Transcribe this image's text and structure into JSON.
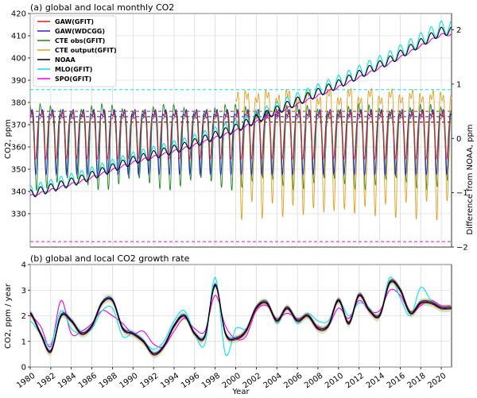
{
  "chart_data": [
    {
      "type": "line",
      "title": "(a) global and local monthly CO2",
      "ylabel": "CO2, ppm",
      "y2label": "Difference from NOAA, ppm",
      "xlim": [
        1980,
        2021
      ],
      "ylim": [
        315,
        420
      ],
      "y2lim": [
        -2,
        2.3
      ],
      "grid": true,
      "legend_position": "top-left",
      "y_ticks": [
        "330",
        "340",
        "350",
        "360",
        "370",
        "380",
        "390",
        "400",
        "410",
        "420"
      ],
      "y2_ticks": [
        "−2",
        "−1",
        "0",
        "1",
        "2"
      ],
      "series": [
        {
          "name": "GAW(GFIT)",
          "color": "#e41a1c"
        },
        {
          "name": "GAW(WDCGG)",
          "color": "#1f1fd0"
        },
        {
          "name": "CTE obs(GFIT)",
          "color": "#1a8a1a"
        },
        {
          "name": "CTE output(GFIT)",
          "color": "#e0a020"
        },
        {
          "name": "NOAA",
          "color": "#000000"
        },
        {
          "name": "MLO(GFIT)",
          "color": "#00e5ee"
        },
        {
          "name": "SPO(GFIT)",
          "color": "#ee00ee"
        }
      ],
      "co2_annual_means": {
        "x": [
          1980,
          1985,
          1990,
          1995,
          2000,
          2005,
          2010,
          2015,
          2020
        ],
        "NOAA": [
          338.9,
          345.5,
          353.9,
          360.2,
          368.4,
          378.6,
          388.3,
          399.0,
          412.0
        ],
        "MLO": [
          339.8,
          346.4,
          354.8,
          361.1,
          369.3,
          379.5,
          389.3,
          400.3,
          413.7
        ],
        "SPO": [
          337.9,
          344.6,
          353.0,
          359.3,
          367.3,
          377.3,
          386.9,
          397.7,
          410.5
        ]
      },
      "difference_offsets": {
        "MLO(GFIT)": 0.9,
        "SPO(GFIT)": -1.9,
        "GAW(GFIT)": 0.5,
        "GAW(WDCGG)": 0.4,
        "NOAA": 0.3
      }
    },
    {
      "type": "line",
      "title": "(b) global and local CO2 growth rate",
      "ylabel": "CO2, ppm / year",
      "xlabel": "Year",
      "xlim": [
        1980,
        2021
      ],
      "ylim": [
        0,
        4
      ],
      "grid": true,
      "x_ticks": [
        "1980",
        "1982",
        "1984",
        "1986",
        "1988",
        "1990",
        "1992",
        "1994",
        "1996",
        "1998",
        "2000",
        "2002",
        "2004",
        "2006",
        "2008",
        "2010",
        "2012",
        "2014",
        "2016",
        "2018",
        "2020"
      ],
      "y_ticks": [
        "0",
        "1",
        "2",
        "3",
        "4"
      ],
      "growth_rate": {
        "x": [
          1980,
          1981,
          1982,
          1983,
          1984,
          1985,
          1986,
          1987,
          1988,
          1989,
          1990,
          1991,
          1992,
          1993,
          1994,
          1995,
          1996,
          1997,
          1998,
          1999,
          2000,
          2001,
          2002,
          2003,
          2004,
          2005,
          2006,
          2007,
          2008,
          2009,
          2010,
          2011,
          2012,
          2013,
          2014,
          2015,
          2016,
          2017,
          2018,
          2019,
          2020,
          2021
        ],
        "NOAA": [
          2.1,
          1.3,
          0.6,
          2.0,
          1.8,
          1.3,
          1.6,
          2.5,
          2.6,
          1.5,
          1.3,
          1.0,
          0.5,
          0.8,
          1.6,
          2.0,
          1.3,
          1.2,
          3.2,
          1.3,
          1.1,
          1.4,
          2.3,
          2.5,
          1.8,
          2.3,
          1.8,
          2.0,
          1.5,
          1.6,
          2.6,
          1.7,
          2.8,
          2.2,
          2.0,
          3.3,
          3.0,
          2.1,
          2.5,
          2.5,
          2.3,
          2.3
        ],
        "MLO": [
          1.8,
          1.3,
          0.9,
          2.2,
          1.5,
          1.3,
          1.5,
          2.2,
          2.3,
          1.2,
          1.3,
          1.0,
          0.7,
          1.0,
          1.8,
          2.2,
          1.3,
          0.9,
          3.5,
          0.5,
          1.5,
          1.5,
          2.3,
          2.6,
          1.7,
          2.3,
          1.7,
          2.1,
          1.8,
          1.8,
          2.6,
          2.0,
          2.5,
          2.3,
          2.0,
          3.5,
          2.7,
          2.0,
          3.1,
          2.6,
          2.3,
          2.4
        ],
        "SPO": [
          2.0,
          1.6,
          0.8,
          2.6,
          1.3,
          1.4,
          1.7,
          2.2,
          2.0,
          1.7,
          1.3,
          1.4,
          0.9,
          0.8,
          1.4,
          1.9,
          1.5,
          1.4,
          2.8,
          1.6,
          1.1,
          1.2,
          2.2,
          2.4,
          1.9,
          2.1,
          1.9,
          2.0,
          1.6,
          1.6,
          2.3,
          1.9,
          2.6,
          2.2,
          2.2,
          3.0,
          2.8,
          2.1,
          2.4,
          2.6,
          2.4,
          2.4
        ]
      }
    }
  ]
}
